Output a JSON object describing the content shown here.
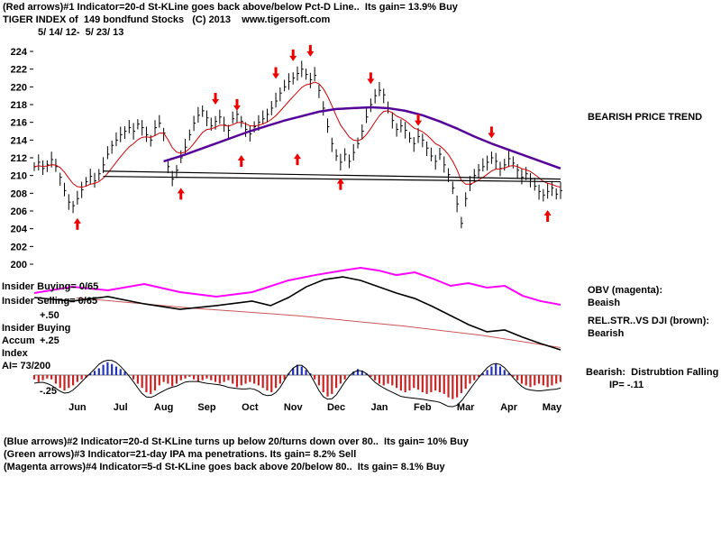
{
  "header": {
    "line1": "(Red arrows)#1 Indicator=20-d St-KLine goes back above/below Pct-D Line..  Its gain= 13.9% Buy",
    "line2": "TIGER INDEX of  149 bondfund Stocks   (C) 2013    www.tigersoft.com",
    "line3": "5/ 14/ 12-  5/ 23/ 13"
  },
  "annotations": {
    "price_trend": "BEARISH PRICE TREND",
    "insider_buying_line": "Insider Buying= 0/65",
    "insider_selling_line": "Insider Selling= 0/65",
    "scale_plus50": "+.50",
    "insider_buying2": "Insider Buying",
    "accum_label": "Accum",
    "scale_plus25": "+.25",
    "index_label": "Index",
    "ai_value": "AI= 73/200",
    "scale_minus25": "-.25",
    "obv_label": "OBV (magenta):",
    "obv_status": "Beaish",
    "relstr_label": "REL.STR..VS DJI (brown):",
    "relstr_status": "Bearish",
    "distribution_line1": "Bearish:  Distrubtion Falling",
    "distribution_line2": "IP= -.11"
  },
  "footer": {
    "line1": "(Blue arrows)#2 Indicator=20-d St-KLine turns up below 20/turns down over 80..  Its gain= 10% Buy",
    "line2": "(Green arrows)#3 Indicator=21-day IPA ma penetrations. Its gain= 8.2% Sell",
    "line3": "(Magenta arrows)#4 Indicator=5-d St-KLine goes back above 20/below 80..  Its gain= 8.1% Buy"
  },
  "chart_data": {
    "type": "candlestick",
    "title": "TIGER INDEX of 149 bondfund Stocks",
    "date_range": "5/14/12 - 5/23/13",
    "ylim": [
      200,
      224
    ],
    "y_ticks": [
      224,
      222,
      220,
      218,
      216,
      214,
      212,
      210,
      208,
      206,
      204,
      202,
      200
    ],
    "months": [
      "Jun",
      "Jul",
      "Aug",
      "Sep",
      "Oct",
      "Nov",
      "Dec",
      "Jan",
      "Feb",
      "Mar",
      "Apr",
      "May"
    ],
    "closes": [
      211.0,
      211.5,
      210.8,
      211.2,
      211.8,
      211.0,
      209.8,
      208.3,
      207.0,
      206.6,
      207.4,
      208.4,
      209.3,
      209.9,
      209.4,
      210.2,
      211.2,
      212.4,
      213.4,
      214.0,
      214.6,
      215.0,
      215.4,
      215.0,
      215.8,
      215.4,
      214.6,
      214.0,
      215.4,
      215.9,
      214.8,
      211.0,
      209.6,
      210.6,
      212.0,
      213.2,
      214.6,
      215.9,
      216.8,
      217.3,
      216.5,
      215.6,
      216.1,
      216.6,
      215.7,
      215.1,
      216.4,
      216.9,
      216.1,
      215.2,
      214.7,
      215.5,
      216.0,
      216.4,
      216.9,
      217.6,
      218.4,
      219.3,
      220.0,
      220.6,
      221.0,
      221.5,
      222.0,
      221.4,
      220.8,
      221.3,
      219.6,
      217.6,
      215.5,
      213.6,
      212.2,
      211.5,
      212.4,
      211.6,
      212.6,
      213.6,
      215.0,
      216.6,
      218.0,
      219.0,
      219.6,
      219.1,
      217.6,
      216.2,
      215.2,
      215.6,
      215.1,
      214.2,
      213.6,
      214.4,
      214.0,
      213.1,
      212.2,
      211.6,
      212.4,
      211.2,
      210.1,
      208.6,
      206.8,
      204.6,
      207.4,
      209.0,
      210.0,
      210.6,
      211.0,
      211.5,
      212.0,
      211.6,
      210.8,
      211.2,
      211.9,
      211.4,
      210.6,
      209.8,
      210.2,
      209.6,
      208.8,
      208.2,
      207.8,
      208.2,
      208.6,
      207.9,
      208.3
    ],
    "ma_slow_points": [
      [
        30,
        211.6
      ],
      [
        34,
        212.2
      ],
      [
        38,
        212.9
      ],
      [
        42,
        213.6
      ],
      [
        46,
        214.3
      ],
      [
        50,
        215.0
      ],
      [
        54,
        215.6
      ],
      [
        58,
        216.2
      ],
      [
        62,
        216.7
      ],
      [
        66,
        217.2
      ],
      [
        70,
        217.5
      ],
      [
        74,
        217.6
      ],
      [
        78,
        217.7
      ],
      [
        82,
        217.6
      ],
      [
        86,
        217.3
      ],
      [
        90,
        216.8
      ],
      [
        94,
        216.1
      ],
      [
        98,
        215.3
      ],
      [
        102,
        214.4
      ],
      [
        106,
        213.6
      ],
      [
        110,
        212.9
      ],
      [
        114,
        212.2
      ],
      [
        118,
        211.5
      ],
      [
        122,
        210.8
      ]
    ],
    "trendlines": [
      [
        16,
        210.5,
        122,
        209.6
      ],
      [
        16,
        209.9,
        122,
        209.3
      ]
    ],
    "arrows_up": [
      [
        10,
        205.2
      ],
      [
        34,
        208.6
      ],
      [
        48,
        212.3
      ],
      [
        61,
        212.5
      ],
      [
        71,
        209.7
      ],
      [
        119,
        206.1
      ]
    ],
    "arrows_down": [
      [
        42,
        218.0
      ],
      [
        47,
        217.3
      ],
      [
        56,
        220.9
      ],
      [
        60,
        222.9
      ],
      [
        64,
        223.4
      ],
      [
        78,
        220.3
      ],
      [
        89,
        215.6
      ],
      [
        106,
        214.2
      ]
    ],
    "obv_points": [
      [
        0,
        0.279
      ],
      [
        0.072,
        0.212
      ],
      [
        0.14,
        0.25
      ],
      [
        0.209,
        0.183
      ],
      [
        0.277,
        0.269
      ],
      [
        0.346,
        0.317
      ],
      [
        0.414,
        0.269
      ],
      [
        0.483,
        0.144
      ],
      [
        0.534,
        0.087
      ],
      [
        0.586,
        0.038
      ],
      [
        0.62,
        0.01
      ],
      [
        0.654,
        0.038
      ],
      [
        0.688,
        0.087
      ],
      [
        0.723,
        0.058
      ],
      [
        0.757,
        0.125
      ],
      [
        0.791,
        0.202
      ],
      [
        0.825,
        0.173
      ],
      [
        0.86,
        0.221
      ],
      [
        0.894,
        0.202
      ],
      [
        0.928,
        0.308
      ],
      [
        0.962,
        0.365
      ],
      [
        1,
        0.404
      ]
    ],
    "relstr_points": [
      [
        0,
        0.327
      ],
      [
        0.072,
        0.365
      ],
      [
        0.14,
        0.317
      ],
      [
        0.209,
        0.394
      ],
      [
        0.277,
        0.452
      ],
      [
        0.346,
        0.413
      ],
      [
        0.414,
        0.365
      ],
      [
        0.449,
        0.413
      ],
      [
        0.483,
        0.327
      ],
      [
        0.517,
        0.212
      ],
      [
        0.551,
        0.135
      ],
      [
        0.586,
        0.106
      ],
      [
        0.62,
        0.144
      ],
      [
        0.654,
        0.212
      ],
      [
        0.688,
        0.279
      ],
      [
        0.723,
        0.337
      ],
      [
        0.757,
        0.423
      ],
      [
        0.791,
        0.519
      ],
      [
        0.825,
        0.615
      ],
      [
        0.86,
        0.692
      ],
      [
        0.894,
        0.673
      ],
      [
        0.928,
        0.75
      ],
      [
        0.962,
        0.817
      ],
      [
        1,
        0.885
      ]
    ],
    "relstr_trend_points": [
      [
        0.08,
        0.33
      ],
      [
        0.3,
        0.44
      ],
      [
        0.5,
        0.52
      ],
      [
        0.7,
        0.63
      ],
      [
        0.85,
        0.73
      ],
      [
        1,
        0.86
      ]
    ],
    "hist_values": [
      -0.05,
      -0.08,
      -0.06,
      -0.04,
      -0.05,
      -0.1,
      -0.15,
      -0.18,
      -0.15,
      -0.12,
      -0.08,
      -0.05,
      -0.03,
      0.02,
      0.05,
      0.08,
      0.12,
      0.15,
      0.13,
      0.1,
      0.07,
      0.04,
      0.0,
      -0.05,
      -0.1,
      -0.15,
      -0.2,
      -0.22,
      -0.18,
      -0.12,
      -0.08,
      -0.1,
      -0.13,
      -0.1,
      -0.06,
      -0.04,
      -0.02,
      -0.05,
      -0.08,
      -0.06,
      -0.04,
      -0.06,
      -0.08,
      -0.1,
      -0.08,
      -0.06,
      -0.1,
      -0.14,
      -0.12,
      -0.1,
      -0.08,
      -0.1,
      -0.12,
      -0.15,
      -0.18,
      -0.2,
      -0.15,
      -0.1,
      -0.05,
      0.02,
      0.08,
      0.12,
      0.1,
      0.06,
      0.02,
      -0.05,
      -0.12,
      -0.2,
      -0.25,
      -0.22,
      -0.15,
      -0.1,
      -0.05,
      0.0,
      0.04,
      0.07,
      0.05,
      0.02,
      -0.02,
      -0.06,
      -0.1,
      -0.12,
      -0.1,
      -0.12,
      -0.15,
      -0.18,
      -0.2,
      -0.18,
      -0.15,
      -0.17,
      -0.2,
      -0.22,
      -0.2,
      -0.18,
      -0.2,
      -0.22,
      -0.26,
      -0.28,
      -0.26,
      -0.21,
      -0.16,
      -0.1,
      -0.06,
      -0.02,
      0.02,
      0.06,
      0.1,
      0.13,
      0.1,
      0.06,
      0.02,
      -0.02,
      -0.06,
      -0.1,
      -0.12,
      -0.14,
      -0.12,
      -0.1,
      -0.12,
      -0.14,
      -0.12,
      -0.1,
      -0.08
    ],
    "colors": {
      "bars": "#000000",
      "ma_fast": "#cc0000",
      "ma_slow": "#550099",
      "arrow": "#ee0000",
      "obv": "#ff00ff",
      "relstr": "#000000",
      "relstr_trend": "#cc5555",
      "hist_pos": "#2233bb",
      "hist_neg": "#cc2222"
    }
  }
}
